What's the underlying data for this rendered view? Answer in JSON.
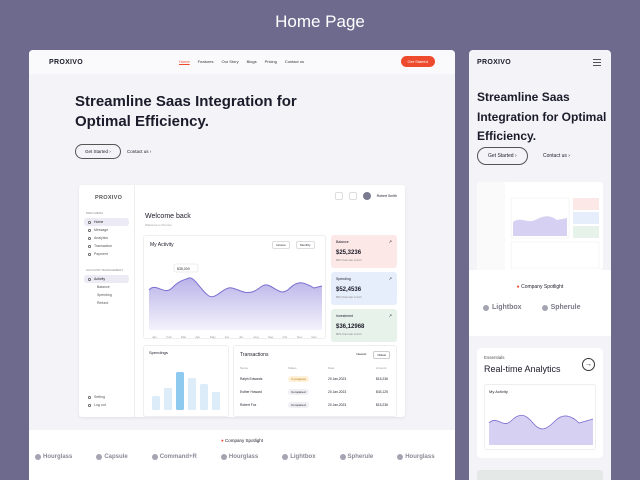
{
  "page_title": "Home Page",
  "brand": "PROXIVO",
  "nav": {
    "links": [
      "Home",
      "Features",
      "Our Story",
      "Blogs",
      "Pricing",
      "Contact us"
    ],
    "active": "Home",
    "cta": "Get Started"
  },
  "hero": {
    "title": "Streamline Saas Integration for Optimal Efficiency.",
    "primary": "Get Started",
    "secondary": "Contact us"
  },
  "dashboard": {
    "brand": "PROXIVO",
    "main_menu_caption": "MAIN MENU",
    "main_menu": [
      "Home",
      "Message",
      "Analytics",
      "Transaction",
      "Payment"
    ],
    "account_caption": "ACCOUNT MANAGEMENT",
    "account_menu": "Activity",
    "account_sub": [
      "Balance",
      "Spending",
      "Refund"
    ],
    "bottom": [
      "Setting",
      "Log out"
    ],
    "user": "Robert Smith",
    "welcome": "Welcome back",
    "welcome_sub": "Welcome to Proxivo",
    "activity_title": "My Activity",
    "activity_filter": "Income",
    "activity_period": "Monthly",
    "activity_tooltip": "$35,000",
    "months": [
      "Jan",
      "Feb",
      "Mar",
      "Apr",
      "May",
      "Jun",
      "Jul",
      "Aug",
      "Sep",
      "Oct",
      "Nov",
      "Dec"
    ],
    "stats": [
      {
        "label": "Balance",
        "value": "$25,3236",
        "sub": "80% than last month",
        "color": "#fde8e8"
      },
      {
        "label": "Spending",
        "value": "$52,4536",
        "sub": "80% than last month",
        "color": "#e6eefc"
      },
      {
        "label": "Investment",
        "value": "$36,12968",
        "sub": "80% than last month",
        "color": "#e6f2ea"
      }
    ],
    "spendings_title": "Spendings",
    "spendings_bars": [
      0.35,
      0.55,
      0.95,
      0.8,
      0.65,
      0.45
    ],
    "transactions_title": "Transactions",
    "transactions_tabs": [
      "Newest",
      "Oldest"
    ],
    "transactions_columns": [
      "Name",
      "Status",
      "Date",
      "Amount"
    ],
    "transactions": [
      {
        "name": "Ralph Edwards",
        "status": "In progress",
        "date": "20 Jan,2023",
        "amount": "$15,236"
      },
      {
        "name": "Esther Howard",
        "status": "Completed",
        "date": "20 Jan,2023",
        "amount": "$43,125"
      },
      {
        "name": "Robert Fox",
        "status": "Completed",
        "date": "20 Jan,2023",
        "amount": "$15,236"
      }
    ]
  },
  "spotlight": {
    "label": "Company Spotlight",
    "brands": [
      "Hourglass",
      "Capsule",
      "Command+R",
      "Hourglass",
      "Lightbox",
      "Spherule",
      "Hourglass"
    ]
  },
  "mobile": {
    "brand": "PROXIVO",
    "hero": "Streamline Saas Integration for Optimal Efficiency.",
    "primary": "Get Started",
    "secondary": "Contact us",
    "spotlight": "Company Spotlight",
    "brands": [
      "Lightbox",
      "Spherule"
    ],
    "kicker": "Essentials",
    "feature": "Real-time Analytics",
    "mini_title": "My Activity"
  }
}
